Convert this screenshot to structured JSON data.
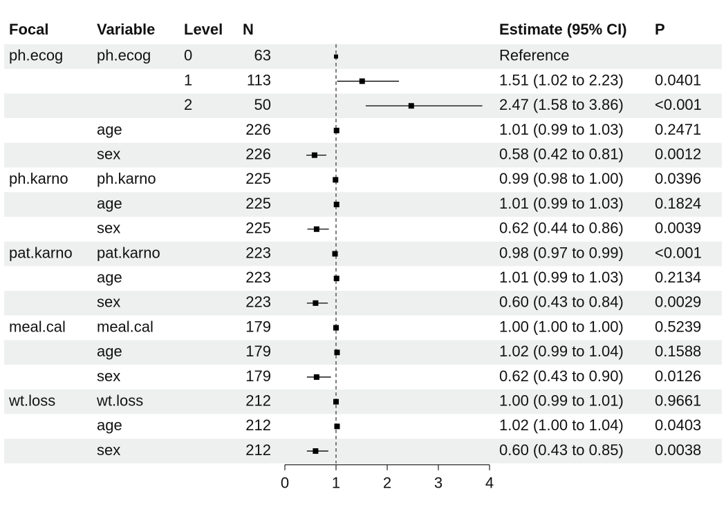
{
  "chart_data": {
    "type": "forest",
    "headers": {
      "focal": "Focal",
      "variable": "Variable",
      "level": "Level",
      "n": "N",
      "estimate": "Estimate (95% CI)",
      "p": "P"
    },
    "xlim": [
      0,
      4
    ],
    "xticks": [
      0,
      1,
      2,
      3,
      4
    ],
    "reference_line": 1,
    "color": "#000000",
    "rows": [
      {
        "focal": "ph.ecog",
        "variable": "ph.ecog",
        "level": "0",
        "n": 63,
        "estimate": 1,
        "lower": null,
        "upper": null,
        "estimate_label": "Reference",
        "p": null
      },
      {
        "focal": null,
        "variable": null,
        "level": "1",
        "n": 113,
        "estimate": 1.51,
        "lower": 1.02,
        "upper": 2.23,
        "estimate_label": "1.51 (1.02 to 2.23)",
        "p": "0.0401"
      },
      {
        "focal": null,
        "variable": null,
        "level": "2",
        "n": 50,
        "estimate": 2.47,
        "lower": 1.58,
        "upper": 3.86,
        "estimate_label": "2.47 (1.58 to 3.86)",
        "p": "<0.001"
      },
      {
        "focal": null,
        "variable": "age",
        "level": null,
        "n": 226,
        "estimate": 1.01,
        "lower": 0.99,
        "upper": 1.03,
        "estimate_label": "1.01 (0.99 to 1.03)",
        "p": "0.2471"
      },
      {
        "focal": null,
        "variable": "sex",
        "level": null,
        "n": 226,
        "estimate": 0.58,
        "lower": 0.42,
        "upper": 0.81,
        "estimate_label": "0.58 (0.42 to 0.81)",
        "p": "0.0012"
      },
      {
        "focal": "ph.karno",
        "variable": "ph.karno",
        "level": null,
        "n": 225,
        "estimate": 0.99,
        "lower": 0.98,
        "upper": 1.0,
        "estimate_label": "0.99 (0.98 to 1.00)",
        "p": "0.0396"
      },
      {
        "focal": null,
        "variable": "age",
        "level": null,
        "n": 225,
        "estimate": 1.01,
        "lower": 0.99,
        "upper": 1.03,
        "estimate_label": "1.01 (0.99 to 1.03)",
        "p": "0.1824"
      },
      {
        "focal": null,
        "variable": "sex",
        "level": null,
        "n": 225,
        "estimate": 0.62,
        "lower": 0.44,
        "upper": 0.86,
        "estimate_label": "0.62 (0.44 to 0.86)",
        "p": "0.0039"
      },
      {
        "focal": "pat.karno",
        "variable": "pat.karno",
        "level": null,
        "n": 223,
        "estimate": 0.98,
        "lower": 0.97,
        "upper": 0.99,
        "estimate_label": "0.98 (0.97 to 0.99)",
        "p": "<0.001"
      },
      {
        "focal": null,
        "variable": "age",
        "level": null,
        "n": 223,
        "estimate": 1.01,
        "lower": 0.99,
        "upper": 1.03,
        "estimate_label": "1.01 (0.99 to 1.03)",
        "p": "0.2134"
      },
      {
        "focal": null,
        "variable": "sex",
        "level": null,
        "n": 223,
        "estimate": 0.6,
        "lower": 0.43,
        "upper": 0.84,
        "estimate_label": "0.60 (0.43 to 0.84)",
        "p": "0.0029"
      },
      {
        "focal": "meal.cal",
        "variable": "meal.cal",
        "level": null,
        "n": 179,
        "estimate": 1.0,
        "lower": 1.0,
        "upper": 1.0,
        "estimate_label": "1.00 (1.00 to 1.00)",
        "p": "0.5239"
      },
      {
        "focal": null,
        "variable": "age",
        "level": null,
        "n": 179,
        "estimate": 1.02,
        "lower": 0.99,
        "upper": 1.04,
        "estimate_label": "1.02 (0.99 to 1.04)",
        "p": "0.1588"
      },
      {
        "focal": null,
        "variable": "sex",
        "level": null,
        "n": 179,
        "estimate": 0.62,
        "lower": 0.43,
        "upper": 0.9,
        "estimate_label": "0.62 (0.43 to 0.90)",
        "p": "0.0126"
      },
      {
        "focal": "wt.loss",
        "variable": "wt.loss",
        "level": null,
        "n": 212,
        "estimate": 1.0,
        "lower": 0.99,
        "upper": 1.01,
        "estimate_label": "1.00 (0.99 to 1.01)",
        "p": "0.9661"
      },
      {
        "focal": null,
        "variable": "age",
        "level": null,
        "n": 212,
        "estimate": 1.02,
        "lower": 1.0,
        "upper": 1.04,
        "estimate_label": "1.02 (1.00 to 1.04)",
        "p": "0.0403"
      },
      {
        "focal": null,
        "variable": "sex",
        "level": null,
        "n": 212,
        "estimate": 0.6,
        "lower": 0.43,
        "upper": 0.85,
        "estimate_label": "0.60 (0.43 to 0.85)",
        "p": "0.0038"
      }
    ]
  }
}
